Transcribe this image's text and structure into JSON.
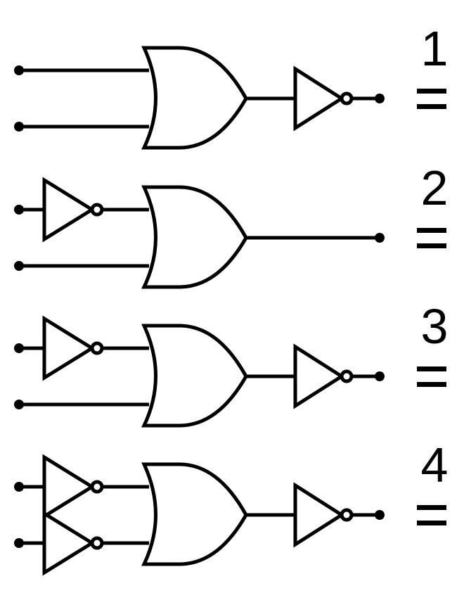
{
  "diagram": {
    "circuits": [
      {
        "number": "1",
        "input_inverters": [
          false,
          false
        ],
        "output_inverter": true
      },
      {
        "number": "2",
        "input_inverters": [
          true,
          false
        ],
        "output_inverter": false
      },
      {
        "number": "3",
        "input_inverters": [
          true,
          false
        ],
        "output_inverter": true
      },
      {
        "number": "4",
        "input_inverters": [
          true,
          true
        ],
        "output_inverter": true
      }
    ],
    "gate_type": "OR",
    "equals_symbol": "=",
    "stroke_color": "#000000",
    "background_color": "#ffffff"
  }
}
